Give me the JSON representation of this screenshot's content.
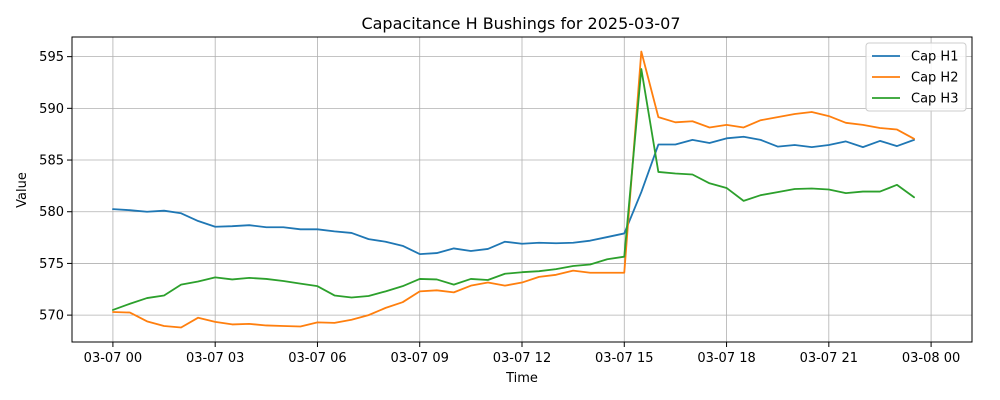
{
  "chart_data": {
    "type": "line",
    "title": "Capacitance H Bushings for 2025-03-07",
    "xlabel": "Time",
    "ylabel": "Value",
    "grid": true,
    "legend_placement": "top-right",
    "x_axis": {
      "range_hours": [
        -1.2,
        25.2
      ],
      "ticks_hours": [
        0,
        3,
        6,
        9,
        12,
        15,
        18,
        21,
        24
      ],
      "tick_labels": [
        "03-07 00",
        "03-07 03",
        "03-07 06",
        "03-07 09",
        "03-07 12",
        "03-07 15",
        "03-07 18",
        "03-07 21",
        "03-08 00"
      ]
    },
    "y_axis": {
      "range": [
        567.4,
        596.9
      ],
      "ticks": [
        570,
        575,
        580,
        585,
        590,
        595
      ]
    },
    "x_hours": [
      0,
      0.5,
      1,
      1.5,
      2,
      2.5,
      3,
      3.5,
      4,
      4.5,
      5,
      5.5,
      6,
      6.5,
      7,
      7.5,
      8,
      8.5,
      9,
      9.5,
      10,
      10.5,
      11,
      11.5,
      12,
      12.5,
      13,
      13.5,
      14,
      14.5,
      15,
      15.5,
      16,
      16.5,
      17,
      17.5,
      18,
      18.5,
      19,
      19.5,
      20,
      20.5,
      21,
      21.5,
      22,
      22.5,
      23,
      23.5
    ],
    "series": [
      {
        "name": "Cap H1",
        "color": "#1f77b4",
        "values": [
          580.25,
          580.15,
          580.0,
          580.1,
          579.85,
          579.1,
          578.55,
          578.6,
          578.7,
          578.5,
          578.5,
          578.3,
          578.3,
          578.1,
          577.95,
          577.35,
          577.1,
          576.7,
          575.9,
          576.0,
          576.45,
          576.2,
          576.4,
          577.1,
          576.9,
          577.0,
          576.95,
          577.0,
          577.2,
          577.55,
          577.9,
          581.9,
          586.5,
          586.5,
          586.95,
          586.65,
          587.1,
          587.25,
          586.95,
          586.3,
          586.45,
          586.25,
          586.45,
          586.8,
          586.25,
          586.85,
          586.35,
          586.95
        ]
      },
      {
        "name": "Cap H2",
        "color": "#ff7f0e",
        "values": [
          570.3,
          570.25,
          569.4,
          568.95,
          568.8,
          569.75,
          569.35,
          569.1,
          569.15,
          569.0,
          568.95,
          568.9,
          569.3,
          569.25,
          569.55,
          570.0,
          570.7,
          571.25,
          572.3,
          572.4,
          572.2,
          572.85,
          573.15,
          572.85,
          573.15,
          573.7,
          573.9,
          574.3,
          574.1,
          574.1,
          574.1,
          595.5,
          589.15,
          588.65,
          588.75,
          588.15,
          588.4,
          588.15,
          588.85,
          589.15,
          589.45,
          589.65,
          589.25,
          588.6,
          588.4,
          588.1,
          587.95,
          587.05
        ]
      },
      {
        "name": "Cap H3",
        "color": "#2ca02c",
        "values": [
          570.5,
          571.1,
          571.65,
          571.9,
          572.95,
          573.25,
          573.65,
          573.45,
          573.6,
          573.5,
          573.3,
          573.05,
          572.8,
          571.9,
          571.7,
          571.85,
          572.3,
          572.8,
          573.5,
          573.45,
          572.95,
          573.5,
          573.4,
          574.0,
          574.15,
          574.25,
          574.45,
          574.75,
          574.9,
          575.4,
          575.65,
          593.8,
          583.85,
          583.7,
          583.6,
          582.75,
          582.3,
          581.05,
          581.6,
          581.9,
          582.2,
          582.25,
          582.15,
          581.8,
          581.95,
          581.95,
          582.6,
          581.4
        ]
      }
    ]
  }
}
